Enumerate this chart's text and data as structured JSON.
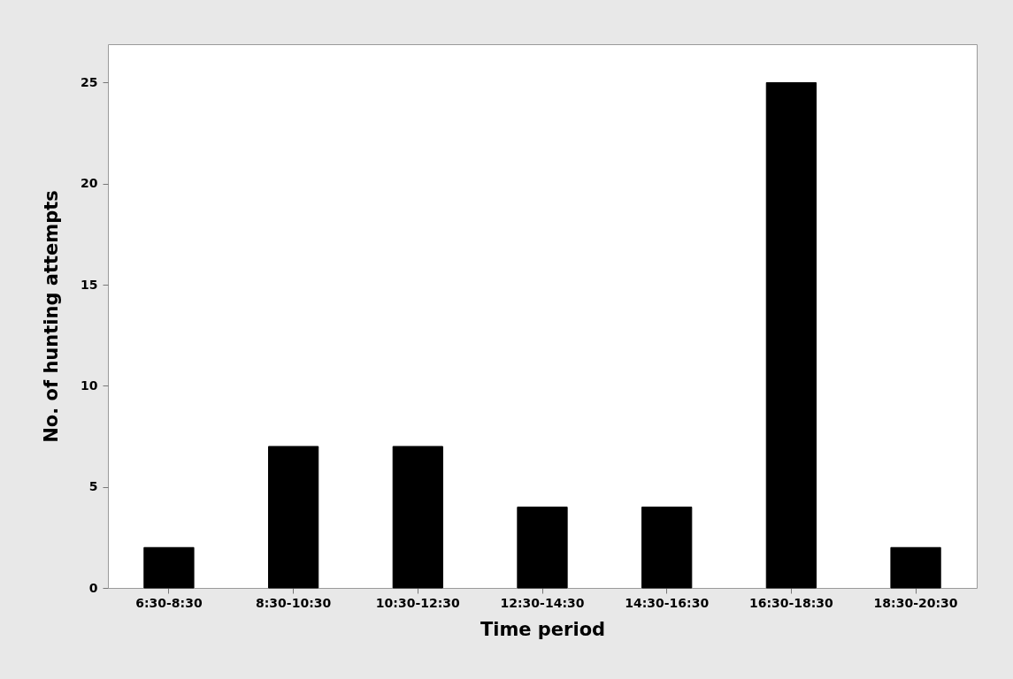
{
  "chart_data": {
    "type": "bar",
    "xlabel": "Time period",
    "ylabel": "No. of hunting attempts",
    "categories": [
      "6:30-8:30",
      "8:30-10:30",
      "10:30-12:30",
      "12:30-14:30",
      "14:30-16:30",
      "16:30-18:30",
      "18:30-20:30"
    ],
    "values": [
      2,
      7,
      7,
      4,
      4,
      25,
      2
    ],
    "color": "#000000",
    "ylim": [
      0,
      26.9
    ],
    "yticks": [
      0,
      5,
      10,
      15,
      20,
      25
    ],
    "grid": false
  }
}
